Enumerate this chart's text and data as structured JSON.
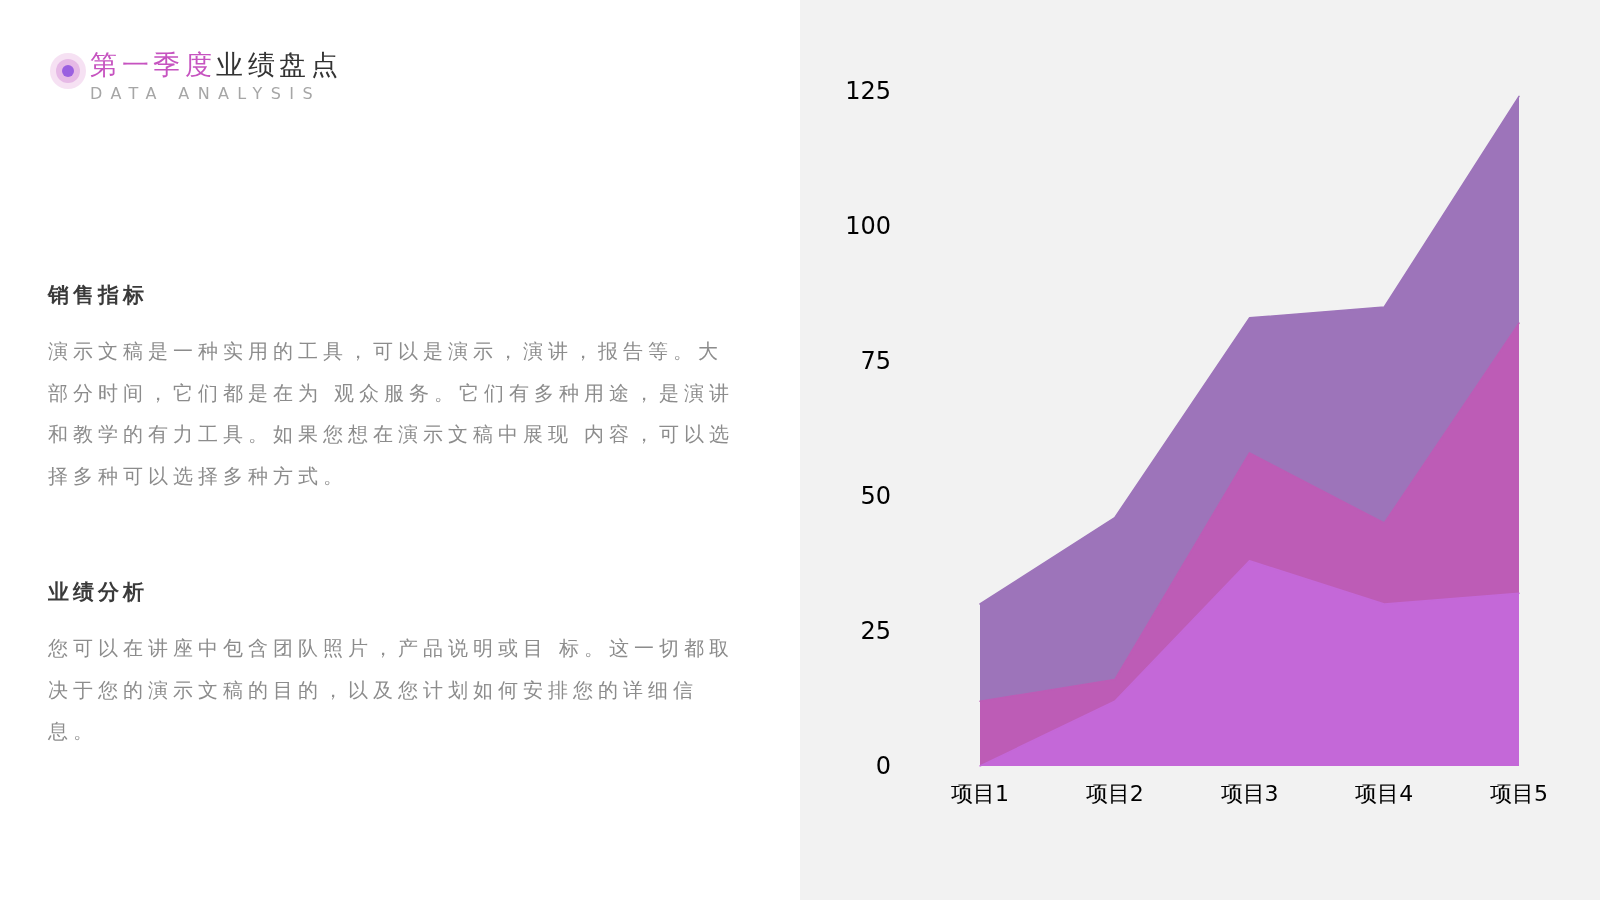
{
  "chart_data": {
    "type": "area",
    "title": "第一季度业绩盘点",
    "subtitle": "DATA ANALYSIS",
    "annotations": [
      "销售指标",
      "演示文稿是一种实用的工具，可以是演示，演讲，报告等。大部分时间，它们都是在为 观众服务。它们有多种用途，是演讲和教学的有力工具。如果您想在演示文稿中展现 内容，可以选择多种可以选择多种方式。",
      "业绩分析",
      "您可以在讲座中包含团队照片，产品说明或目 标。这一切都取决于您的演示文稿的目的，以及您计划如何安排您的详细信息。"
    ],
    "categories": [
      "项目1",
      "项目2",
      "项目3",
      "项目4",
      "项目5"
    ],
    "series": [
      {
        "color": "#9d74ba",
        "values": [
          30,
          46,
          83,
          85,
          124
        ]
      },
      {
        "color": "#bd5cb6",
        "values": [
          12,
          16,
          58,
          45,
          82
        ]
      },
      {
        "color": "#c468d8",
        "values": [
          0,
          12,
          38,
          30,
          32
        ]
      }
    ],
    "ylim": [
      0,
      125
    ],
    "yticks": [
      0,
      25,
      50,
      75,
      100,
      125
    ]
  }
}
